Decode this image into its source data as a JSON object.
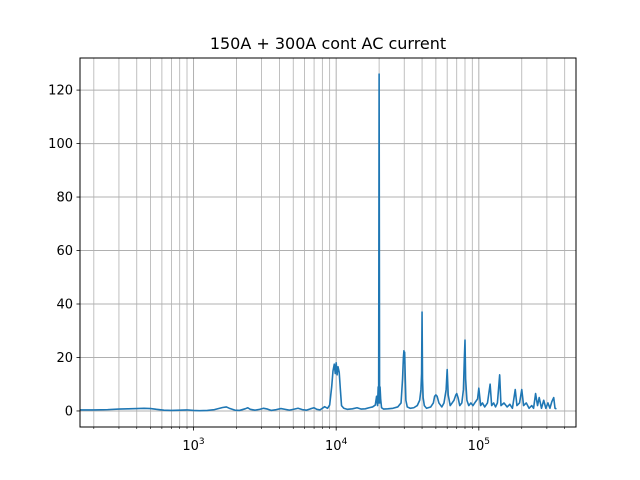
{
  "chart_data": {
    "type": "line",
    "title": "150A + 300A cont AC current",
    "xlabel": "",
    "ylabel": "",
    "x_scale": "log",
    "xlim": [
      160,
      480000
    ],
    "ylim": [
      -6,
      132
    ],
    "grid": "both (major and minor on x)",
    "line_color": "#1f77b4",
    "y_ticks": [
      0,
      20,
      40,
      60,
      80,
      100,
      120
    ],
    "x_ticks": [
      {
        "value": 1000,
        "base": "10",
        "exp": "3"
      },
      {
        "value": 10000,
        "base": "10",
        "exp": "4"
      },
      {
        "value": 100000,
        "base": "10",
        "exp": "5"
      }
    ],
    "series": [
      {
        "points": [
          [
            160,
            0.4
          ],
          [
            200,
            0.4
          ],
          [
            250,
            0.5
          ],
          [
            300,
            0.7
          ],
          [
            350,
            0.8
          ],
          [
            400,
            0.9
          ],
          [
            450,
            1.0
          ],
          [
            500,
            0.9
          ],
          [
            550,
            0.6
          ],
          [
            620,
            0.3
          ],
          [
            700,
            0.2
          ],
          [
            800,
            0.3
          ],
          [
            900,
            0.4
          ],
          [
            1000,
            0.2
          ],
          [
            1100,
            0.1
          ],
          [
            1250,
            0.2
          ],
          [
            1400,
            0.5
          ],
          [
            1600,
            1.3
          ],
          [
            1700,
            1.5
          ],
          [
            1800,
            0.9
          ],
          [
            1950,
            0.3
          ],
          [
            2100,
            0.2
          ],
          [
            2300,
            0.8
          ],
          [
            2400,
            1.2
          ],
          [
            2500,
            0.6
          ],
          [
            2700,
            0.3
          ],
          [
            2900,
            0.6
          ],
          [
            3100,
            1.0
          ],
          [
            3300,
            0.7
          ],
          [
            3500,
            0.2
          ],
          [
            3800,
            0.5
          ],
          [
            4100,
            0.9
          ],
          [
            4400,
            0.6
          ],
          [
            4700,
            0.3
          ],
          [
            5000,
            0.6
          ],
          [
            5400,
            1.0
          ],
          [
            5800,
            0.5
          ],
          [
            6200,
            0.3
          ],
          [
            6600,
            0.8
          ],
          [
            7000,
            1.2
          ],
          [
            7300,
            0.6
          ],
          [
            7700,
            0.4
          ],
          [
            8000,
            1.0
          ],
          [
            8300,
            1.6
          ],
          [
            8700,
            1.0
          ],
          [
            9000,
            2.2
          ],
          [
            9300,
            9.0
          ],
          [
            9500,
            15.0
          ],
          [
            9700,
            17.5
          ],
          [
            9850,
            14.0
          ],
          [
            10000,
            18.0
          ],
          [
            10150,
            13.5
          ],
          [
            10300,
            16.5
          ],
          [
            10500,
            14.5
          ],
          [
            10700,
            8.0
          ],
          [
            10900,
            2.0
          ],
          [
            11300,
            1.0
          ],
          [
            12000,
            0.6
          ],
          [
            13000,
            0.8
          ],
          [
            14000,
            1.2
          ],
          [
            15000,
            0.7
          ],
          [
            16000,
            0.8
          ],
          [
            17000,
            1.2
          ],
          [
            18000,
            1.5
          ],
          [
            18800,
            2.2
          ],
          [
            19200,
            5.5
          ],
          [
            19500,
            2.0
          ],
          [
            19700,
            9.0
          ],
          [
            19850,
            3.0
          ],
          [
            20000,
            126
          ],
          [
            20150,
            3.0
          ],
          [
            20300,
            9.0
          ],
          [
            20500,
            4.5
          ],
          [
            20800,
            1.2
          ],
          [
            21500,
            0.7
          ],
          [
            23000,
            0.8
          ],
          [
            25000,
            1.0
          ],
          [
            27000,
            1.5
          ],
          [
            28500,
            3.0
          ],
          [
            29200,
            12.0
          ],
          [
            29600,
            20.0
          ],
          [
            29850,
            22.5
          ],
          [
            30000,
            18.0
          ],
          [
            30200,
            22.0
          ],
          [
            30450,
            14.0
          ],
          [
            30800,
            4.0
          ],
          [
            31500,
            1.5
          ],
          [
            33000,
            1.0
          ],
          [
            35000,
            1.2
          ],
          [
            37000,
            2.0
          ],
          [
            38500,
            4.0
          ],
          [
            39300,
            8.0
          ],
          [
            39700,
            14.0
          ],
          [
            40000,
            37.0
          ],
          [
            40300,
            12.0
          ],
          [
            40700,
            5.0
          ],
          [
            41500,
            2.0
          ],
          [
            43000,
            1.0
          ],
          [
            46000,
            1.5
          ],
          [
            48000,
            3.0
          ],
          [
            49000,
            5.5
          ],
          [
            50000,
            6.0
          ],
          [
            51000,
            5.5
          ],
          [
            52500,
            3.0
          ],
          [
            55000,
            1.5
          ],
          [
            57000,
            3.0
          ],
          [
            59000,
            8.0
          ],
          [
            60000,
            15.5
          ],
          [
            61000,
            6.0
          ],
          [
            63000,
            2.0
          ],
          [
            65000,
            3.0
          ],
          [
            67000,
            4.0
          ],
          [
            69000,
            6.0
          ],
          [
            70000,
            6.5
          ],
          [
            71500,
            5.0
          ],
          [
            73500,
            2.0
          ],
          [
            76000,
            3.0
          ],
          [
            78000,
            8.0
          ],
          [
            79200,
            20.0
          ],
          [
            80000,
            26.5
          ],
          [
            80800,
            12.0
          ],
          [
            82500,
            4.0
          ],
          [
            85000,
            2.0
          ],
          [
            88000,
            3.0
          ],
          [
            91000,
            2.0
          ],
          [
            95000,
            3.5
          ],
          [
            98000,
            4.5
          ],
          [
            100000,
            8.5
          ],
          [
            103000,
            2.0
          ],
          [
            106000,
            3.0
          ],
          [
            110000,
            1.5
          ],
          [
            115000,
            3.0
          ],
          [
            120000,
            10.0
          ],
          [
            123000,
            2.0
          ],
          [
            127000,
            3.0
          ],
          [
            131000,
            1.5
          ],
          [
            135000,
            3.0
          ],
          [
            140000,
            13.5
          ],
          [
            143000,
            2.0
          ],
          [
            150000,
            3.0
          ],
          [
            158000,
            1.5
          ],
          [
            165000,
            2.5
          ],
          [
            172000,
            1.0
          ],
          [
            180000,
            8.0
          ],
          [
            185000,
            2.0
          ],
          [
            193000,
            3.0
          ],
          [
            200000,
            8.0
          ],
          [
            206000,
            2.0
          ],
          [
            215000,
            3.0
          ],
          [
            225000,
            1.0
          ],
          [
            235000,
            2.0
          ],
          [
            242000,
            1.0
          ],
          [
            250000,
            6.5
          ],
          [
            258000,
            2.0
          ],
          [
            265000,
            5.0
          ],
          [
            275000,
            1.0
          ],
          [
            285000,
            4.0
          ],
          [
            295000,
            1.0
          ],
          [
            305000,
            3.0
          ],
          [
            315000,
            1.0
          ],
          [
            325000,
            3.5
          ],
          [
            335000,
            5.0
          ],
          [
            342000,
            1.0
          ],
          [
            350000,
            0.8
          ]
        ]
      }
    ]
  }
}
